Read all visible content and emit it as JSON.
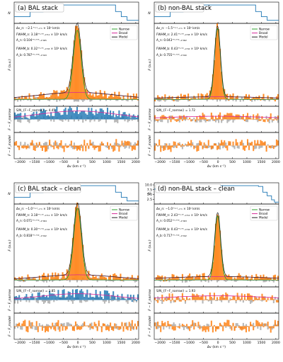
{
  "chart_data": [
    {
      "type": "bar",
      "title": "(a) BAL stack",
      "xlabel": "Δv (km s⁻¹)",
      "ylabels": {
        "count": "N",
        "flux": "F (a.u.)",
        "resid_narrow": "F − F_narrow",
        "resid_model": "F − F_model"
      },
      "xlim": [
        -2200,
        2100
      ],
      "x_ticks": [
        -2000,
        -1500,
        -1000,
        -500,
        0,
        500,
        1000,
        1500,
        2000
      ],
      "x_tick_labels": [
        "−2000",
        "−1500",
        "−1000",
        "−500",
        "0",
        "500",
        "1000",
        "1500",
        "2000"
      ],
      "legend": {
        "placement": "top-right",
        "entries": [
          "Narrow",
          "Broad",
          "Model"
        ]
      },
      "annotations": [
        "Δv_n: −2.1⁺¹·¹₋₁·₁ × 10² km/s",
        "FWHM_n: 3.18⁺⁰·⁰⁹₋₀·₁₁ × 10² km/s",
        "A_n: 0.104⁺⁰·⁰⁰⁵₋₀·₀₀₅",
        "FWHM_b: 0.32⁺⁰·⁰⁵₋₀·₀₃ × 10⁴ km/s",
        "A_b: 0.787⁺⁰·⁰⁰⁸₋₀·₀₁₃"
      ],
      "snr_label": "S/N_{F−F_narrow} = 4.45",
      "narrow": {
        "center": -21,
        "fwhm": 318,
        "amp": 0.8
      },
      "broad": {
        "center": 0,
        "fwhm": 3200,
        "amp": 0.08
      },
      "flux_ylim": [
        -0.08,
        0.88
      ],
      "series": [
        {
          "name": "Narrow",
          "color": "#2ca02c"
        },
        {
          "name": "Broad",
          "color": "#d62798"
        },
        {
          "name": "Model",
          "color": "#222222"
        }
      ],
      "colors": {
        "flux": "#ff7f0e",
        "resid": "#1f77b4",
        "noise": "#9e9e9e",
        "count": "#1f77b4"
      }
    },
    {
      "type": "bar",
      "title": "(b) non-BAL stack",
      "xlabel": "Δv (km s⁻¹)",
      "ylabels": {
        "count": "N",
        "flux": "F (a.u.)",
        "resid_narrow": "F − F_narrow",
        "resid_model": "F − F_model"
      },
      "xlim": [
        -2200,
        2100
      ],
      "x_ticks": [
        -2000,
        -1500,
        -1000,
        -500,
        0,
        500,
        1000,
        1500,
        2000
      ],
      "x_tick_labels": [
        "−2000",
        "−1500",
        "−1000",
        "−500",
        "0",
        "500",
        "1000",
        "1500",
        "2000"
      ],
      "legend": {
        "placement": "top-right",
        "entries": [
          "Narrow",
          "Broad",
          "Model"
        ]
      },
      "annotations": [
        "Δv_n: −1.5⁺¹·¹₋₁·₁ × 10² km/s",
        "FWHM_n: 2.41⁺⁰·⁰⁹₋₀·₀₈ × 10² km/s",
        "A_n: 0.043⁺⁰·⁰⁰²₋₀·₀₀₂",
        "FWHM_b: 0.43⁺⁰·⁰²₋₀·₀₂ × 10⁴ km/s",
        "A_b: 0.755⁺⁰·⁰¹⁰₋₀·₀₁₀"
      ],
      "snr_label": "S/N_{F−F_narrow} = 1.72",
      "narrow": {
        "center": -15,
        "fwhm": 241,
        "amp": 0.82
      },
      "broad": {
        "center": 0,
        "fwhm": 4300,
        "amp": 0.03
      },
      "flux_ylim": [
        -0.08,
        0.88
      ],
      "series": [
        {
          "name": "Narrow",
          "color": "#2ca02c"
        },
        {
          "name": "Broad",
          "color": "#d62798"
        },
        {
          "name": "Model",
          "color": "#222222"
        }
      ],
      "colors": {
        "flux": "#ff7f0e",
        "resid": "#1f77b4",
        "noise": "#9e9e9e",
        "count": "#1f77b4"
      }
    },
    {
      "type": "bar",
      "title": "(c) BAL stack – clean",
      "xlabel": "Δv (km s⁻¹)",
      "ylabels": {
        "count": "N",
        "flux": "F (a.u.)",
        "resid_narrow": "F − F_narrow",
        "resid_model": "F − F_model"
      },
      "xlim": [
        -2200,
        2100
      ],
      "x_ticks": [
        -2000,
        -1500,
        -1000,
        -500,
        0,
        500,
        1000,
        1500,
        2000
      ],
      "x_tick_labels": [
        "−2000",
        "−1500",
        "−1000",
        "−500",
        "0",
        "500",
        "1000",
        "1500",
        "2000"
      ],
      "legend": {
        "placement": "top-right",
        "entries": [
          "Narrow",
          "Broad",
          "Model"
        ]
      },
      "annotations": [
        "Δv_n: −1.0⁺¹·¹₋₁·₁ × 10² km/s",
        "FWHM_n: 3.18⁺⁰·¹⁰₋₀·₁₁ × 10² km/s",
        "A_n: 0.071⁺⁰·⁰⁰⁴₋₀·₀₀₄",
        "FWHM_b: 0.30⁺⁰·⁰⁴₋₀·₀₃ × 10⁴ km/s",
        "A_b: 0.818⁺⁰·⁰¹²₋₀·₀₁₂"
      ],
      "snr_label": "S/N_{F−F_narrow} = 2.85",
      "narrow": {
        "center": -10,
        "fwhm": 318,
        "amp": 0.83
      },
      "broad": {
        "center": 0,
        "fwhm": 3000,
        "amp": 0.06
      },
      "flux_ylim": [
        -0.08,
        0.88
      ],
      "series": [
        {
          "name": "Narrow",
          "color": "#2ca02c"
        },
        {
          "name": "Broad",
          "color": "#d62798"
        },
        {
          "name": "Model",
          "color": "#222222"
        }
      ],
      "colors": {
        "flux": "#ff7f0e",
        "resid": "#1f77b4",
        "noise": "#9e9e9e",
        "count": "#1f77b4"
      }
    },
    {
      "type": "bar",
      "title": "(d) non-BAL stack – clean",
      "xlabel": "Δv (km s⁻¹)",
      "ylabels": {
        "count": "N",
        "flux": "F (a.u.)",
        "resid_narrow": "F − F_narrow",
        "resid_model": "F − F_model"
      },
      "xlim": [
        -2200,
        2100
      ],
      "x_ticks": [
        -2000,
        -1500,
        -1000,
        -500,
        0,
        500,
        1000,
        1500,
        2000
      ],
      "x_tick_labels": [
        "−2000",
        "−1500",
        "−1000",
        "−500",
        "0",
        "500",
        "1000",
        "1500",
        "2000"
      ],
      "count_ticks": [
        2.5,
        5.0,
        7.5,
        10.0
      ],
      "count_tick_labels": [
        "2.5",
        "5.0",
        "7.5",
        "10.0"
      ],
      "legend": {
        "placement": "top-right",
        "entries": [
          "Narrow",
          "Broad",
          "Model"
        ]
      },
      "annotations": [
        "Δv_n: −1.0⁺¹·¹₋₁·₁ × 10² km/s",
        "FWHM_n: 2.43⁺⁰·¹⁰₋₀·₁₀ × 10² km/s",
        "A_n: 0.052⁺⁰·⁰⁰³₋₀·₀₀₃",
        "FWHM_b: 0.43⁺⁰·⁰⁵₋₀·₀₂ × 10⁴ km/s",
        "A_b: 0.717⁺⁰·⁰¹²₋₀·₀₁₂"
      ],
      "snr_label": "S/N_{F−F_narrow} = 1.93",
      "narrow": {
        "center": -10,
        "fwhm": 243,
        "amp": 0.74
      },
      "broad": {
        "center": 0,
        "fwhm": 4300,
        "amp": 0.04
      },
      "flux_ylim": [
        -0.08,
        0.88
      ],
      "series": [
        {
          "name": "Narrow",
          "color": "#2ca02c"
        },
        {
          "name": "Broad",
          "color": "#d62798"
        },
        {
          "name": "Model",
          "color": "#222222"
        }
      ],
      "colors": {
        "flux": "#ff7f0e",
        "resid": "#1f77b4",
        "noise": "#9e9e9e",
        "count": "#1f77b4"
      }
    }
  ]
}
